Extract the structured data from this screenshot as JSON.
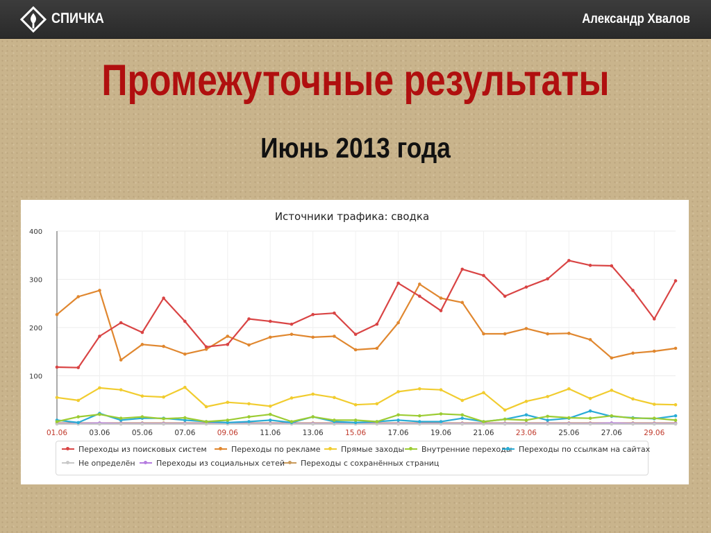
{
  "header": {
    "brand": "СПИЧКА",
    "author": "Александр Хвалов",
    "logo_icon": "match-flame-diamond-icon"
  },
  "slide": {
    "title": "Промежуточные результаты",
    "subtitle": "Июнь 2013 года"
  },
  "colors": {
    "title": "#b00f0f",
    "topbar": "#333333",
    "background": "#c9b48c"
  },
  "chart_data": {
    "type": "line",
    "title": "Источники трафика: сводка",
    "ylim": [
      0,
      400
    ],
    "yticks": [
      100,
      200,
      300,
      400
    ],
    "grid": true,
    "legend_position": "bottom",
    "x": [
      "01.06",
      "02.06",
      "03.06",
      "04.06",
      "05.06",
      "06.06",
      "07.06",
      "08.06",
      "09.06",
      "10.06",
      "11.06",
      "12.06",
      "13.06",
      "14.06",
      "15.06",
      "16.06",
      "17.06",
      "18.06",
      "19.06",
      "20.06",
      "21.06",
      "22.06",
      "23.06",
      "24.06",
      "25.06",
      "26.06",
      "27.06",
      "28.06",
      "29.06",
      "30.06"
    ],
    "xtick_labels": [
      {
        "label": "01.06",
        "index": 0,
        "weekend": true
      },
      {
        "label": "03.06",
        "index": 2,
        "weekend": false
      },
      {
        "label": "05.06",
        "index": 4,
        "weekend": false
      },
      {
        "label": "07.06",
        "index": 6,
        "weekend": false
      },
      {
        "label": "09.06",
        "index": 8,
        "weekend": true
      },
      {
        "label": "11.06",
        "index": 10,
        "weekend": false
      },
      {
        "label": "13.06",
        "index": 12,
        "weekend": false
      },
      {
        "label": "15.06",
        "index": 14,
        "weekend": true
      },
      {
        "label": "17.06",
        "index": 16,
        "weekend": false
      },
      {
        "label": "19.06",
        "index": 18,
        "weekend": false
      },
      {
        "label": "21.06",
        "index": 20,
        "weekend": false
      },
      {
        "label": "23.06",
        "index": 22,
        "weekend": true
      },
      {
        "label": "25.06",
        "index": 24,
        "weekend": false
      },
      {
        "label": "27.06",
        "index": 26,
        "weekend": false
      },
      {
        "label": "29.06",
        "index": 28,
        "weekend": true
      }
    ],
    "tick_colors": {
      "weekday": "#333333",
      "weekend": "#c0392b"
    },
    "series": [
      {
        "name": "Переходы из поисковых систем",
        "color": "#d94444",
        "values": [
          118,
          117,
          182,
          210,
          190,
          261,
          213,
          160,
          165,
          218,
          213,
          207,
          227,
          230,
          186,
          207,
          292,
          265,
          235,
          321,
          308,
          265,
          284,
          301,
          339,
          329,
          328,
          277,
          218,
          297
        ]
      },
      {
        "name": "Переходы по рекламе",
        "color": "#e0872f",
        "values": [
          227,
          264,
          277,
          133,
          165,
          161,
          145,
          155,
          182,
          164,
          180,
          186,
          180,
          182,
          154,
          157,
          210,
          290,
          261,
          252,
          187,
          187,
          198,
          187,
          188,
          175,
          137,
          147,
          151,
          157
        ]
      },
      {
        "name": "Прямые заходы",
        "color": "#f1cc2f",
        "values": [
          55,
          49,
          75,
          71,
          58,
          56,
          76,
          36,
          45,
          42,
          37,
          54,
          62,
          55,
          40,
          42,
          67,
          73,
          71,
          49,
          65,
          29,
          47,
          57,
          73,
          53,
          70,
          52,
          41,
          40
        ]
      },
      {
        "name": "Внутренние переходы",
        "color": "#9ccc33",
        "values": [
          5,
          15,
          20,
          12,
          15,
          11,
          13,
          5,
          8,
          15,
          20,
          5,
          15,
          8,
          8,
          5,
          19,
          17,
          21,
          19,
          5,
          10,
          8,
          16,
          13,
          12,
          17,
          12,
          12,
          8
        ]
      },
      {
        "name": "Переходы по ссылкам на сайтах",
        "color": "#2aacd6",
        "values": [
          8,
          3,
          22,
          8,
          12,
          12,
          8,
          5,
          3,
          5,
          8,
          3,
          15,
          5,
          3,
          5,
          8,
          5,
          5,
          12,
          5,
          10,
          19,
          8,
          12,
          27,
          16,
          13,
          11,
          17
        ]
      },
      {
        "name": "Не определён",
        "color": "#c8c8c8",
        "values": [
          0,
          0,
          0,
          0,
          0,
          0,
          0,
          0,
          0,
          0,
          0,
          0,
          0,
          0,
          0,
          0,
          0,
          0,
          0,
          0,
          0,
          0,
          0,
          0,
          0,
          0,
          0,
          0,
          0,
          0
        ]
      },
      {
        "name": "Переходы из социальных сетей",
        "color": "#b57ce0",
        "values": [
          1,
          1,
          2,
          1,
          1,
          1,
          1,
          1,
          1,
          1,
          1,
          1,
          1,
          1,
          1,
          1,
          1,
          1,
          1,
          1,
          1,
          1,
          1,
          1,
          1,
          1,
          2,
          1,
          1,
          1
        ]
      },
      {
        "name": "Переходы с сохранённых страниц",
        "color": "#c99a5b",
        "values": [
          2,
          2,
          2,
          2,
          2,
          2,
          2,
          2,
          2,
          2,
          2,
          2,
          2,
          2,
          2,
          2,
          2,
          2,
          2,
          2,
          2,
          2,
          2,
          2,
          2,
          2,
          2,
          2,
          2,
          2
        ]
      }
    ]
  }
}
